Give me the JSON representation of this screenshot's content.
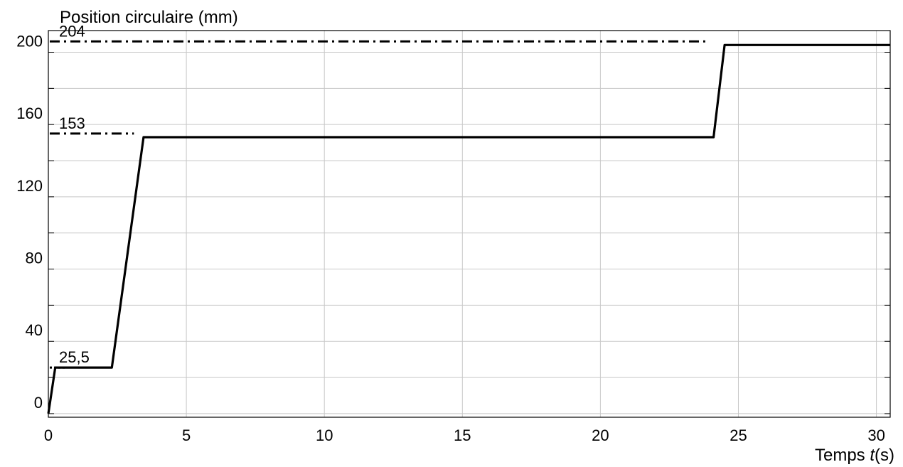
{
  "chart_data": {
    "type": "line",
    "ylabel": "Position circulaire (mm)",
    "xlabel": "Temps t(s)",
    "xlabel_prefix": "Temps ",
    "xlabel_var": "t",
    "xlabel_unit": "(s)",
    "xlim": [
      0,
      30.5
    ],
    "ylim": [
      -2,
      212
    ],
    "x_ticks": [
      0,
      5,
      10,
      15,
      20,
      25,
      30
    ],
    "x_tick_labels": [
      "0",
      "5",
      "10",
      "15",
      "20",
      "25",
      "30"
    ],
    "y_ticks": [
      0,
      40,
      80,
      120,
      160,
      200
    ],
    "y_tick_labels": [
      "0",
      "40",
      "80",
      "120",
      "160",
      "200"
    ],
    "grid": true,
    "series": [
      {
        "x": [
          0,
          0.25,
          2.3,
          3.45,
          24.1,
          24.5,
          30.5
        ],
        "y": [
          0,
          25.5,
          25.5,
          153,
          153,
          204,
          204
        ]
      }
    ],
    "reference_lines": [
      {
        "label": "25,5",
        "y": 25.5,
        "x_end": 0.6,
        "style": "dotted"
      },
      {
        "label": "153",
        "y": 155,
        "x_end": 3.1,
        "style": "dash-dot"
      },
      {
        "label": "204",
        "y": 206,
        "x_end": 23.8,
        "style": "dash-dot"
      }
    ]
  }
}
